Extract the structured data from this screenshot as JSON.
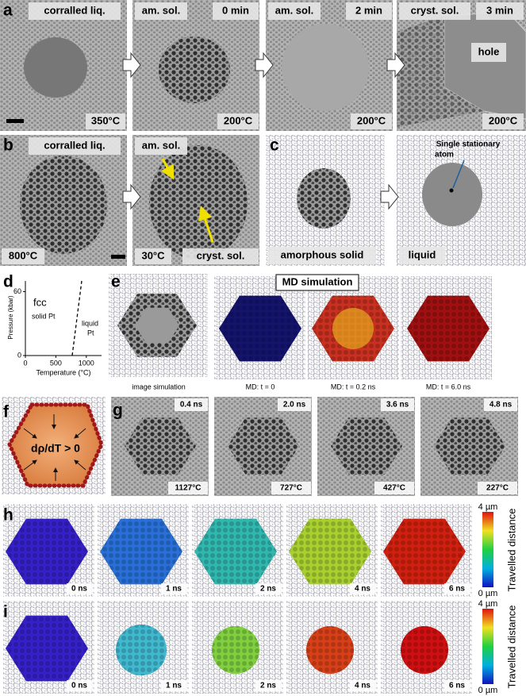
{
  "panel_labels": [
    "a",
    "b",
    "c",
    "d",
    "e",
    "f",
    "g",
    "h",
    "i"
  ],
  "a": {
    "images": [
      {
        "phase": "corralled liq.",
        "temp": "350°C"
      },
      {
        "phase": "am. sol.",
        "time": "0 min",
        "temp": "200°C"
      },
      {
        "phase": "am. sol.",
        "time": "2 min",
        "temp": "200°C"
      },
      {
        "phase": "cryst. sol.",
        "time": "3 min",
        "region": "hole",
        "temp": "200°C"
      }
    ]
  },
  "b": {
    "images": [
      {
        "phase": "corralled liq.",
        "temp": "800°C"
      },
      {
        "phase": "am. sol.",
        "temp": "30°C",
        "arrow_label": "cryst. sol."
      }
    ]
  },
  "c": {
    "images": [
      {
        "phase": "amorphous solid"
      },
      {
        "phase": "liquid",
        "annotation": [
          "Single stationary",
          "atom"
        ]
      }
    ]
  },
  "d": {
    "xlabel": "Temperature (°C)",
    "ylabel": "Pressure (kbar)",
    "xlim": [
      0,
      1250
    ],
    "ylim": [
      0,
      70
    ],
    "xticks": [
      0,
      500,
      1000
    ],
    "yticks": [
      0,
      60
    ],
    "regions": [
      "fcc",
      "solid Pt",
      "liquid",
      "Pt"
    ]
  },
  "e": {
    "title": "MD simulation",
    "captions": [
      "image simulation",
      "MD: t = 0",
      "MD: t = 0.2 ns",
      "MD: t = 6.0 ns"
    ]
  },
  "f": {
    "label": "dρ/dT > 0"
  },
  "g": {
    "times": [
      "0.4 ns",
      "2.0 ns",
      "3.6 ns",
      "4.8 ns"
    ],
    "temps": [
      "1127°C",
      "727°C",
      "427°C",
      "227°C"
    ]
  },
  "h": {
    "times": [
      "0 ns",
      "1 ns",
      "2 ns",
      "4 ns",
      "6 ns"
    ],
    "scale": {
      "max": "4 µm",
      "min": "0 µm",
      "label": "Travelled distance"
    }
  },
  "i": {
    "times": [
      "0 ns",
      "1 ns",
      "2 ns",
      "4 ns",
      "6 ns"
    ],
    "scale": {
      "max": "4 µm",
      "min": "0 µm",
      "label": "Travelled distance"
    }
  }
}
